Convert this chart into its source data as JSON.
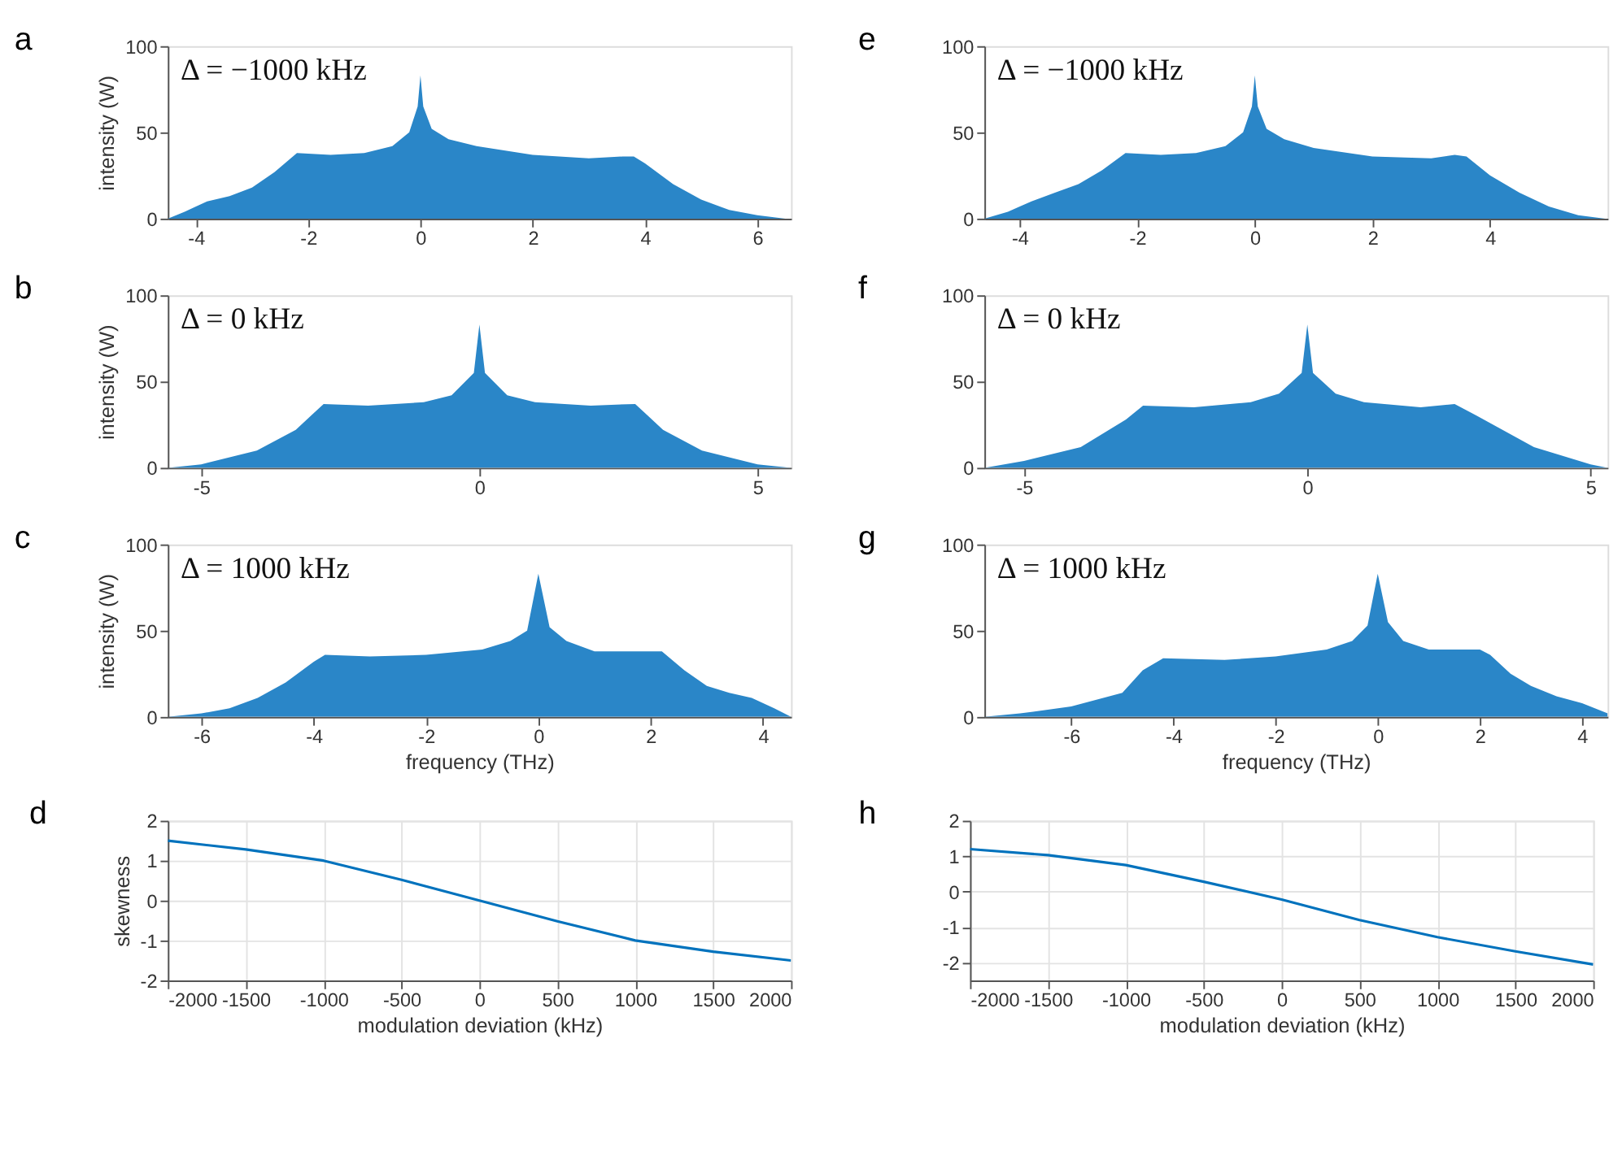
{
  "chart_data": [
    {
      "type": "area",
      "title": "a",
      "ylabel": "intensity (W)",
      "annotations": [
        "Δ = −1000 kHz"
      ],
      "color": "#2a86c8",
      "xlim": [
        -4.5,
        6.6
      ],
      "xticks": [
        -4,
        -2,
        0,
        2,
        4,
        6
      ],
      "ylim": [
        0,
        100
      ],
      "yticks": [
        0,
        50,
        100
      ],
      "grid": false,
      "x": [
        -4.5,
        -4.2,
        -3.8,
        -3.4,
        -3.0,
        -2.6,
        -2.2,
        -1.6,
        -1.0,
        -0.5,
        -0.2,
        -0.05,
        0,
        0.05,
        0.2,
        0.5,
        1.0,
        2.0,
        3.0,
        3.6,
        3.8,
        4.0,
        4.5,
        5.0,
        5.5,
        6.0,
        6.5
      ],
      "values": [
        0,
        4,
        10,
        13,
        18,
        27,
        38,
        37,
        38,
        42,
        50,
        65,
        83,
        65,
        52,
        46,
        42,
        37,
        35,
        36,
        36,
        32,
        20,
        11,
        5,
        2,
        0
      ]
    },
    {
      "type": "area",
      "title": "e",
      "annotations": [
        "Δ = −1000 kHz"
      ],
      "color": "#2a86c8",
      "xlim": [
        -4.6,
        6.0
      ],
      "xticks": [
        -4,
        -2,
        0,
        2,
        4
      ],
      "ylim": [
        0,
        100
      ],
      "yticks": [
        0,
        50,
        100
      ],
      "grid": false,
      "x": [
        -4.6,
        -4.2,
        -3.8,
        -3.4,
        -3.0,
        -2.6,
        -2.2,
        -1.6,
        -1.0,
        -0.5,
        -0.2,
        -0.05,
        0,
        0.05,
        0.2,
        0.5,
        1.0,
        2.0,
        3.0,
        3.4,
        3.6,
        4.0,
        4.5,
        5.0,
        5.5,
        5.96
      ],
      "values": [
        0,
        4,
        10,
        15,
        20,
        28,
        38,
        37,
        38,
        42,
        50,
        65,
        83,
        65,
        52,
        46,
        41,
        36,
        35,
        37,
        36,
        25,
        15,
        7,
        2,
        0
      ]
    },
    {
      "type": "area",
      "title": "b",
      "ylabel": "intensity (W)",
      "annotations": [
        "Δ = 0 kHz"
      ],
      "color": "#2a86c8",
      "xlim": [
        -5.6,
        5.6
      ],
      "xticks": [
        -5,
        0,
        5
      ],
      "ylim": [
        0,
        100
      ],
      "yticks": [
        0,
        50,
        100
      ],
      "grid": false,
      "x": [
        -5.6,
        -5,
        -4,
        -3.3,
        -2.8,
        -2,
        -1,
        -0.5,
        -0.1,
        0,
        0.1,
        0.5,
        1,
        2,
        2.8,
        3.3,
        4,
        5,
        5.6
      ],
      "values": [
        0,
        2,
        10,
        22,
        37,
        36,
        38,
        42,
        55,
        83,
        55,
        42,
        38,
        36,
        37,
        22,
        10,
        2,
        0
      ]
    },
    {
      "type": "area",
      "title": "f",
      "annotations": [
        "Δ = 0 kHz"
      ],
      "color": "#2a86c8",
      "xlim": [
        -5.7,
        5.3
      ],
      "xticks": [
        -5,
        0,
        5
      ],
      "ylim": [
        0,
        100
      ],
      "yticks": [
        0,
        50,
        100
      ],
      "grid": false,
      "x": [
        -5.7,
        -5,
        -4,
        -3.2,
        -2.9,
        -2,
        -1,
        -0.5,
        -0.1,
        0,
        0.1,
        0.5,
        1,
        2,
        2.6,
        3,
        4,
        5,
        5.3
      ],
      "values": [
        0,
        4,
        12,
        28,
        36,
        35,
        38,
        43,
        55,
        83,
        55,
        43,
        38,
        35,
        37,
        30,
        12,
        2,
        0
      ]
    },
    {
      "type": "area",
      "title": "c",
      "ylabel": "intensity (W)",
      "xlabel": "frequency (THz)",
      "annotations": [
        "Δ = 1000 kHz"
      ],
      "color": "#2a86c8",
      "xlim": [
        -6.6,
        4.5
      ],
      "xticks": [
        -6,
        -4,
        -2,
        0,
        2,
        4
      ],
      "ylim": [
        0,
        100
      ],
      "yticks": [
        0,
        50,
        100
      ],
      "grid": false,
      "x": [
        -6.6,
        -6,
        -5.5,
        -5,
        -4.5,
        -4,
        -3.8,
        -3,
        -2,
        -1,
        -0.5,
        -0.2,
        0,
        0.2,
        0.5,
        1,
        2,
        2.2,
        2.6,
        3,
        3.4,
        3.8,
        4.2,
        4.5
      ],
      "values": [
        0,
        2,
        5,
        11,
        20,
        32,
        36,
        35,
        36,
        39,
        44,
        50,
        83,
        52,
        44,
        38,
        38,
        38,
        27,
        18,
        14,
        11,
        5,
        0
      ]
    },
    {
      "type": "area",
      "title": "g",
      "xlabel": "frequency (THz)",
      "annotations": [
        "Δ = 1000 kHz"
      ],
      "color": "#2a86c8",
      "xlim": [
        -7.7,
        4.5
      ],
      "xticks": [
        -6,
        -4,
        -2,
        0,
        2,
        4
      ],
      "ylim": [
        0,
        100
      ],
      "yticks": [
        0,
        50,
        100
      ],
      "grid": false,
      "x": [
        -7.7,
        -7,
        -6,
        -5,
        -4.6,
        -4.2,
        -3,
        -2,
        -1,
        -0.5,
        -0.2,
        0,
        0.2,
        0.5,
        1,
        2,
        2.2,
        2.6,
        3,
        3.5,
        4,
        4.5
      ],
      "values": [
        0,
        2,
        6,
        14,
        27,
        34,
        33,
        35,
        39,
        44,
        53,
        83,
        55,
        44,
        39,
        39,
        36,
        25,
        18,
        12,
        8,
        2
      ]
    },
    {
      "type": "line",
      "title": "d",
      "ylabel": "skewness",
      "xlabel": "modulation deviation (kHz)",
      "color": "#0072bd",
      "xlim": [
        -2000,
        2000
      ],
      "xticks": [
        -2000,
        -1500,
        -1000,
        -500,
        0,
        500,
        1000,
        1500,
        2000
      ],
      "ylim": [
        -2,
        2
      ],
      "yticks": [
        -2,
        -1,
        0,
        1,
        2
      ],
      "grid": true,
      "x": [
        -2000,
        -1500,
        -1000,
        -500,
        0,
        500,
        1000,
        1500,
        2000
      ],
      "values": [
        1.5,
        1.28,
        1.0,
        0.52,
        0.0,
        -0.52,
        -1.0,
        -1.28,
        -1.5
      ]
    },
    {
      "type": "line",
      "title": "h",
      "xlabel": "modulation deviation (kHz)",
      "color": "#0072bd",
      "xlim": [
        -2000,
        2000
      ],
      "xticks": [
        -2000,
        -1500,
        -1000,
        -500,
        0,
        500,
        1000,
        1500,
        2000
      ],
      "ylim": [
        -2.5,
        2
      ],
      "yticks": [
        -2,
        -1,
        0,
        1,
        2
      ],
      "grid": true,
      "x": [
        -2000,
        -1500,
        -1000,
        -500,
        0,
        500,
        1000,
        1500,
        2000
      ],
      "values": [
        1.2,
        1.03,
        0.75,
        0.28,
        -0.22,
        -0.8,
        -1.28,
        -1.68,
        -2.05
      ]
    }
  ]
}
